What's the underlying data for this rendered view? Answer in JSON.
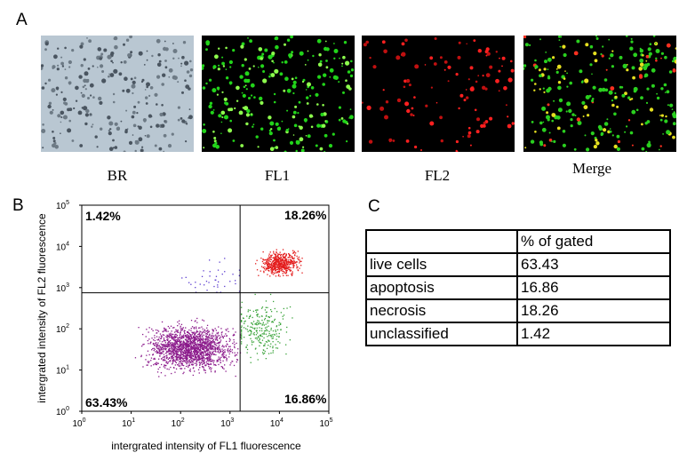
{
  "panel_a": {
    "label": "A",
    "images": [
      {
        "caption": "BR",
        "kind": "brightfield"
      },
      {
        "caption": "FL1",
        "kind": "green"
      },
      {
        "caption": "FL2",
        "kind": "red"
      },
      {
        "caption": "Merge",
        "kind": "merge"
      }
    ]
  },
  "panel_b": {
    "label": "B",
    "quadrants": {
      "upper_left": "1.42%",
      "upper_right": "18.26%",
      "lower_left": "63.43%",
      "lower_right": "16.86%"
    }
  },
  "panel_c": {
    "label": "C",
    "header": [
      "",
      "% of gated"
    ],
    "rows": [
      [
        "live cells",
        "63.43"
      ],
      [
        "apoptosis",
        "16.86"
      ],
      [
        "necrosis",
        "18.26"
      ],
      [
        "unclassified",
        "1.42"
      ]
    ]
  },
  "chart_data": {
    "type": "scatter",
    "xlabel": "intergrated intensity of FL1 fluorescence",
    "ylabel": "intergrated intensity of FL2 fluorescence",
    "x_scale": "log",
    "y_scale": "log",
    "xlim": [
      1,
      100000
    ],
    "ylim": [
      1,
      100000
    ],
    "x_ticks": [
      "10^0",
      "10^1",
      "10^2",
      "10^3",
      "10^4",
      "10^5"
    ],
    "y_ticks": [
      "10^0",
      "10^1",
      "10^2",
      "10^3",
      "10^4",
      "10^5"
    ],
    "gate_x": 1600,
    "gate_y": 750,
    "series": [
      {
        "quadrant": "lower-left",
        "color": "#8b1a8b",
        "percent": 63.43
      },
      {
        "quadrant": "upper-right",
        "color": "#e31a1a",
        "percent": 18.26
      },
      {
        "quadrant": "lower-right",
        "color": "#3aa33a",
        "percent": 16.86
      },
      {
        "quadrant": "upper-left",
        "color": "#5b3ccf",
        "percent": 1.42
      }
    ]
  }
}
